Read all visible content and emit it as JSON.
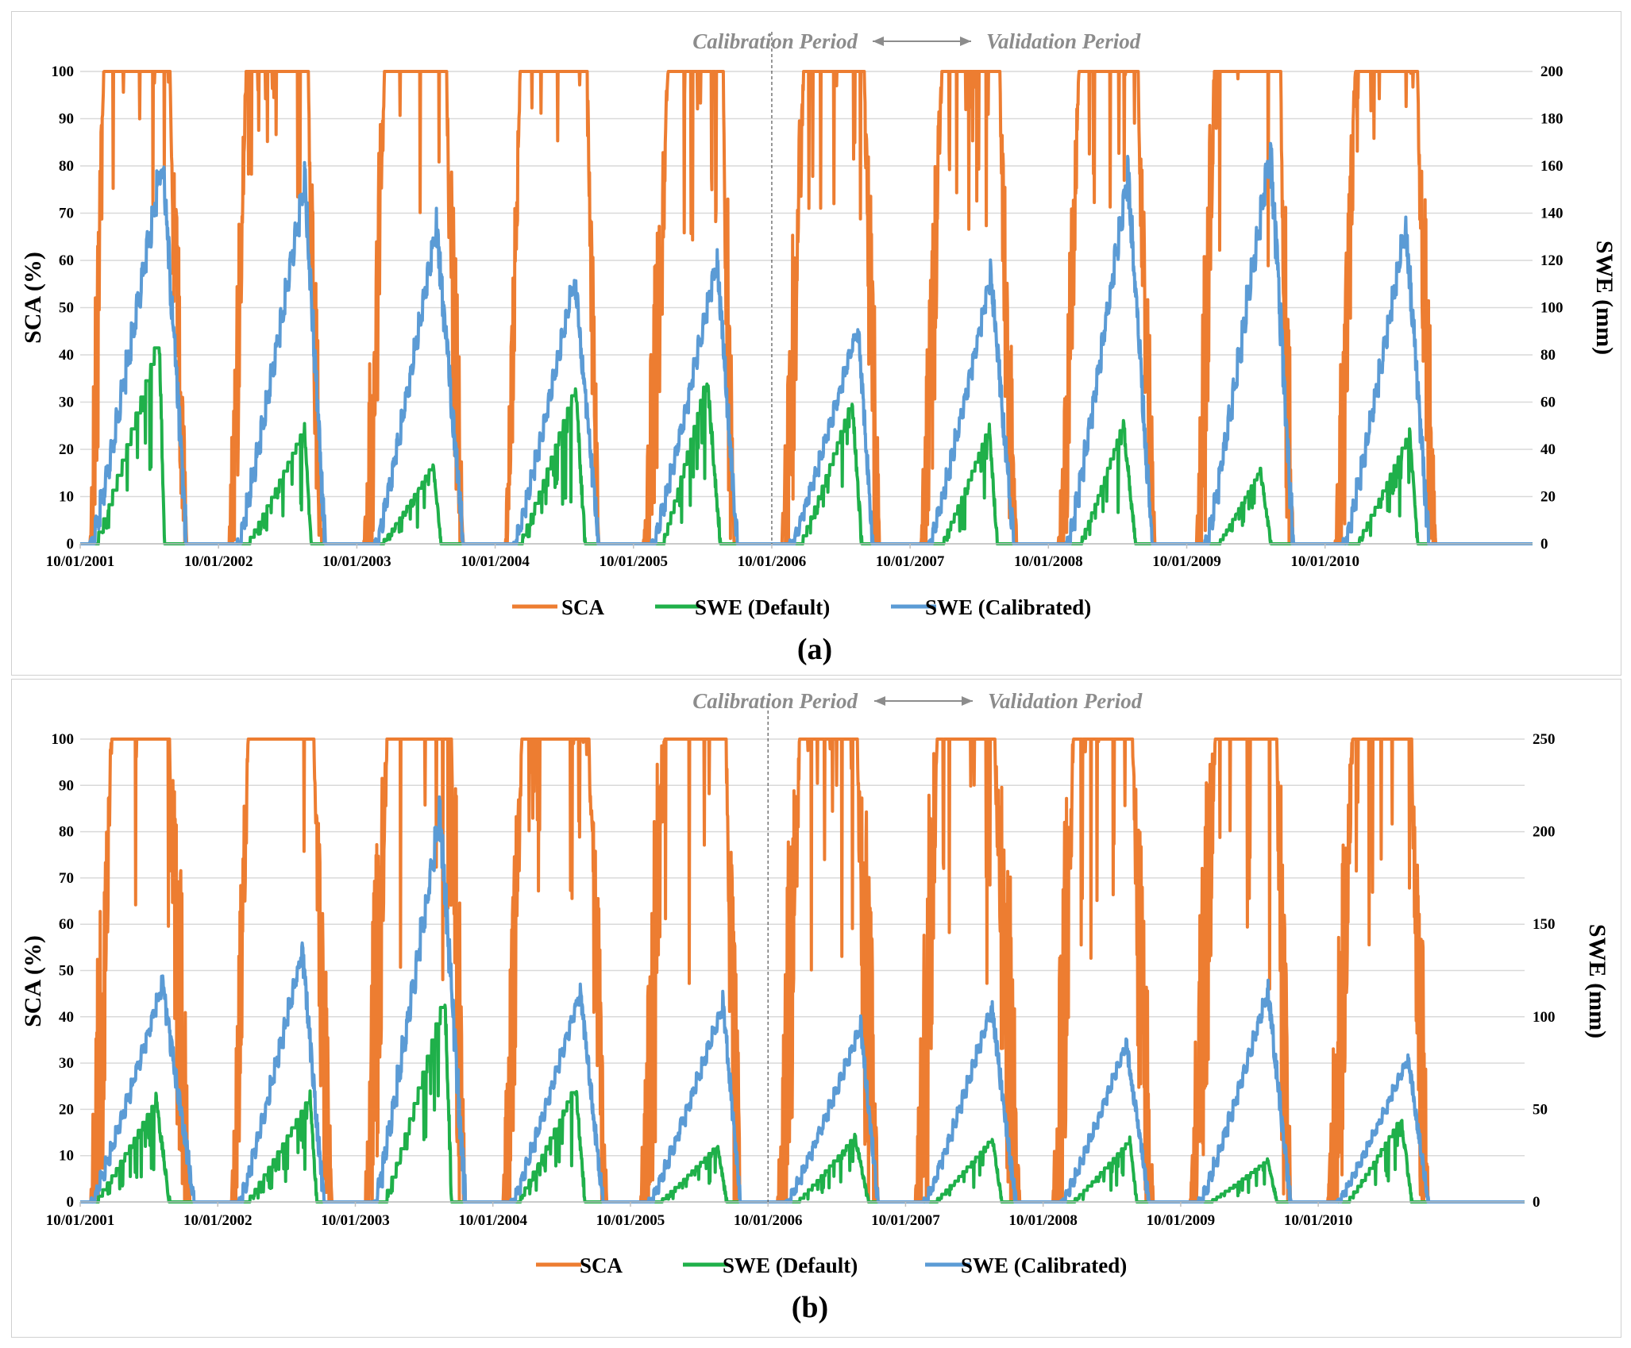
{
  "colors": {
    "sca": "#ED7D31",
    "swe_default": "#1FB04A",
    "swe_calibrated": "#5B9BD5",
    "grid": "#d9d9d9",
    "period_text": "#8c8c8c"
  },
  "chart_data": [
    {
      "type": "line",
      "panel_label": "(a)",
      "ylabel": "SCA (%)",
      "y2label": "SWE (mm)",
      "ylim": [
        0,
        100
      ],
      "y2lim": [
        0,
        200
      ],
      "yticks": [
        "0",
        "10",
        "20",
        "30",
        "40",
        "50",
        "60",
        "70",
        "80",
        "90",
        "100"
      ],
      "y2ticks": [
        "0",
        "20",
        "40",
        "60",
        "80",
        "100",
        "120",
        "140",
        "160",
        "180",
        "200"
      ],
      "x_tick_labels": [
        "10/01/2001",
        "10/01/2002",
        "10/01/2003",
        "10/01/2004",
        "10/01/2005",
        "10/01/2006",
        "10/01/2007",
        "10/01/2008",
        "10/01/2009",
        "10/01/2010"
      ],
      "xlim_years": [
        2001.75,
        2012.25
      ],
      "period_divider_year": 2006.75,
      "calibration_label": "Calibration Period",
      "validation_label": "Validation Period",
      "legend": [
        "SCA",
        "SWE (Default)",
        "SWE (Calibrated)"
      ],
      "series": [
        {
          "name": "SCA",
          "axis": "left",
          "color": "#ED7D31",
          "seasons": [
            {
              "start": 2001.82,
              "rise": 2001.92,
              "fall": 2002.4,
              "end": 2002.52,
              "peak": 100,
              "noise": 30
            },
            {
              "start": 2002.82,
              "rise": 2002.95,
              "fall": 2003.4,
              "end": 2003.5,
              "peak": 100,
              "noise": 25
            },
            {
              "start": 2003.8,
              "rise": 2003.95,
              "fall": 2004.4,
              "end": 2004.52,
              "peak": 100,
              "noise": 30
            },
            {
              "start": 2004.82,
              "rise": 2004.93,
              "fall": 2005.42,
              "end": 2005.5,
              "peak": 100,
              "noise": 20
            },
            {
              "start": 2005.82,
              "rise": 2006.0,
              "fall": 2006.4,
              "end": 2006.48,
              "peak": 100,
              "noise": 30
            },
            {
              "start": 2006.82,
              "rise": 2006.98,
              "fall": 2007.42,
              "end": 2007.53,
              "peak": 100,
              "noise": 30
            },
            {
              "start": 2007.82,
              "rise": 2007.98,
              "fall": 2008.4,
              "end": 2008.52,
              "peak": 100,
              "noise": 30
            },
            {
              "start": 2008.82,
              "rise": 2008.97,
              "fall": 2009.4,
              "end": 2009.52,
              "peak": 100,
              "noise": 25
            },
            {
              "start": 2009.82,
              "rise": 2009.95,
              "fall": 2010.43,
              "end": 2010.52,
              "peak": 100,
              "noise": 35
            },
            {
              "start": 2010.82,
              "rise": 2010.97,
              "fall": 2011.42,
              "end": 2011.55,
              "peak": 100,
              "noise": 30
            }
          ]
        },
        {
          "name": "SWE (Default)",
          "axis": "right",
          "color": "#1FB04A",
          "seasons": [
            {
              "start": 2001.85,
              "peak_t": 2002.32,
              "end": 2002.36,
              "peak": 90
            },
            {
              "start": 2002.95,
              "peak_t": 2003.37,
              "end": 2003.42,
              "peak": 50
            },
            {
              "start": 2003.92,
              "peak_t": 2004.3,
              "end": 2004.36,
              "peak": 34
            },
            {
              "start": 2004.92,
              "peak_t": 2005.33,
              "end": 2005.4,
              "peak": 68
            },
            {
              "start": 2005.95,
              "peak_t": 2006.28,
              "end": 2006.38,
              "peak": 72
            },
            {
              "start": 2006.95,
              "peak_t": 2007.33,
              "end": 2007.4,
              "peak": 62
            },
            {
              "start": 2007.97,
              "peak_t": 2008.32,
              "end": 2008.38,
              "peak": 50
            },
            {
              "start": 2008.97,
              "peak_t": 2009.29,
              "end": 2009.38,
              "peak": 52
            },
            {
              "start": 2009.97,
              "peak_t": 2010.28,
              "end": 2010.36,
              "peak": 32
            },
            {
              "start": 2010.97,
              "peak_t": 2011.36,
              "end": 2011.42,
              "peak": 48
            }
          ]
        },
        {
          "name": "SWE (Calibrated)",
          "axis": "right",
          "color": "#5B9BD5",
          "seasons": [
            {
              "start": 2001.82,
              "peak_t": 2002.34,
              "end": 2002.52,
              "peak": 168
            },
            {
              "start": 2002.88,
              "peak_t": 2003.37,
              "end": 2003.52,
              "peak": 158
            },
            {
              "start": 2003.88,
              "peak_t": 2004.32,
              "end": 2004.52,
              "peak": 138
            },
            {
              "start": 2004.88,
              "peak_t": 2005.32,
              "end": 2005.5,
              "peak": 116
            },
            {
              "start": 2005.88,
              "peak_t": 2006.35,
              "end": 2006.5,
              "peak": 124
            },
            {
              "start": 2006.88,
              "peak_t": 2007.37,
              "end": 2007.48,
              "peak": 95
            },
            {
              "start": 2007.88,
              "peak_t": 2008.33,
              "end": 2008.5,
              "peak": 117
            },
            {
              "start": 2008.88,
              "peak_t": 2009.32,
              "end": 2009.5,
              "peak": 161
            },
            {
              "start": 2009.88,
              "peak_t": 2010.35,
              "end": 2010.52,
              "peak": 172
            },
            {
              "start": 2010.88,
              "peak_t": 2011.33,
              "end": 2011.5,
              "peak": 139
            }
          ]
        }
      ]
    },
    {
      "type": "line",
      "panel_label": "(b)",
      "ylabel": "SCA (%)",
      "y2label": "SWE (mm)",
      "ylim": [
        0,
        100
      ],
      "y2lim": [
        0,
        250
      ],
      "yticks": [
        "0",
        "10",
        "20",
        "30",
        "40",
        "50",
        "60",
        "70",
        "80",
        "90",
        "100"
      ],
      "y2ticks": [
        "0",
        "50",
        "100",
        "150",
        "200",
        "250"
      ],
      "x_tick_labels": [
        "10/01/2001",
        "10/01/2002",
        "10/01/2003",
        "10/01/2004",
        "10/01/2005",
        "10/01/2006",
        "10/01/2007",
        "10/01/2008",
        "10/01/2009",
        "10/01/2010"
      ],
      "xlim_years": [
        2001.75,
        2012.25
      ],
      "period_divider_year": 2006.75,
      "calibration_label": "Calibration Period",
      "validation_label": "Validation Period",
      "legend": [
        "SCA",
        "SWE (Default)",
        "SWE (Calibrated)"
      ],
      "series": [
        {
          "name": "SCA",
          "axis": "left",
          "color": "#ED7D31",
          "seasons": [
            {
              "start": 2001.82,
              "rise": 2001.98,
              "fall": 2002.4,
              "end": 2002.55,
              "peak": 100,
              "noise": 40
            },
            {
              "start": 2002.85,
              "rise": 2002.97,
              "fall": 2003.45,
              "end": 2003.58,
              "peak": 100,
              "noise": 30
            },
            {
              "start": 2003.82,
              "rise": 2003.98,
              "fall": 2004.45,
              "end": 2004.55,
              "peak": 100,
              "noise": 45
            },
            {
              "start": 2004.82,
              "rise": 2004.96,
              "fall": 2005.45,
              "end": 2005.58,
              "peak": 100,
              "noise": 30
            },
            {
              "start": 2005.82,
              "rise": 2006.0,
              "fall": 2006.45,
              "end": 2006.55,
              "peak": 100,
              "noise": 45
            },
            {
              "start": 2006.82,
              "rise": 2006.98,
              "fall": 2007.4,
              "end": 2007.55,
              "peak": 100,
              "noise": 45
            },
            {
              "start": 2007.82,
              "rise": 2007.98,
              "fall": 2008.4,
              "end": 2008.58,
              "peak": 100,
              "noise": 45
            },
            {
              "start": 2008.82,
              "rise": 2008.97,
              "fall": 2009.4,
              "end": 2009.55,
              "peak": 100,
              "noise": 40
            },
            {
              "start": 2009.82,
              "rise": 2010.0,
              "fall": 2010.45,
              "end": 2010.55,
              "peak": 100,
              "noise": 45
            },
            {
              "start": 2010.82,
              "rise": 2011.0,
              "fall": 2011.43,
              "end": 2011.55,
              "peak": 100,
              "noise": 40
            }
          ]
        },
        {
          "name": "SWE (Default)",
          "axis": "right",
          "color": "#1FB04A",
          "seasons": [
            {
              "start": 2001.85,
              "peak_t": 2002.3,
              "end": 2002.4,
              "peak": 56
            },
            {
              "start": 2002.95,
              "peak_t": 2003.42,
              "end": 2003.47,
              "peak": 58
            },
            {
              "start": 2003.95,
              "peak_t": 2004.4,
              "end": 2004.45,
              "peak": 114
            },
            {
              "start": 2004.92,
              "peak_t": 2005.35,
              "end": 2005.42,
              "peak": 64
            },
            {
              "start": 2005.95,
              "peak_t": 2006.38,
              "end": 2006.45,
              "peak": 31
            },
            {
              "start": 2006.95,
              "peak_t": 2007.38,
              "end": 2007.48,
              "peak": 36
            },
            {
              "start": 2007.95,
              "peak_t": 2008.38,
              "end": 2008.45,
              "peak": 35
            },
            {
              "start": 2008.95,
              "peak_t": 2009.38,
              "end": 2009.43,
              "peak": 34
            },
            {
              "start": 2009.95,
              "peak_t": 2010.38,
              "end": 2010.45,
              "peak": 23
            },
            {
              "start": 2010.95,
              "peak_t": 2011.35,
              "end": 2011.43,
              "peak": 46
            }
          ]
        },
        {
          "name": "SWE (Calibrated)",
          "axis": "right",
          "color": "#5B9BD5",
          "seasons": [
            {
              "start": 2001.82,
              "peak_t": 2002.34,
              "end": 2002.58,
              "peak": 120
            },
            {
              "start": 2002.9,
              "peak_t": 2003.36,
              "end": 2003.52,
              "peak": 140
            },
            {
              "start": 2003.88,
              "peak_t": 2004.36,
              "end": 2004.55,
              "peak": 216
            },
            {
              "start": 2004.88,
              "peak_t": 2005.38,
              "end": 2005.55,
              "peak": 117
            },
            {
              "start": 2005.88,
              "peak_t": 2006.42,
              "end": 2006.55,
              "peak": 110
            },
            {
              "start": 2006.88,
              "peak_t": 2007.42,
              "end": 2007.55,
              "peak": 98
            },
            {
              "start": 2007.88,
              "peak_t": 2008.37,
              "end": 2008.55,
              "peak": 108
            },
            {
              "start": 2008.88,
              "peak_t": 2009.35,
              "end": 2009.52,
              "peak": 88
            },
            {
              "start": 2009.88,
              "peak_t": 2010.38,
              "end": 2010.55,
              "peak": 117
            },
            {
              "start": 2010.88,
              "peak_t": 2011.4,
              "end": 2011.55,
              "peak": 80
            }
          ]
        }
      ]
    }
  ]
}
